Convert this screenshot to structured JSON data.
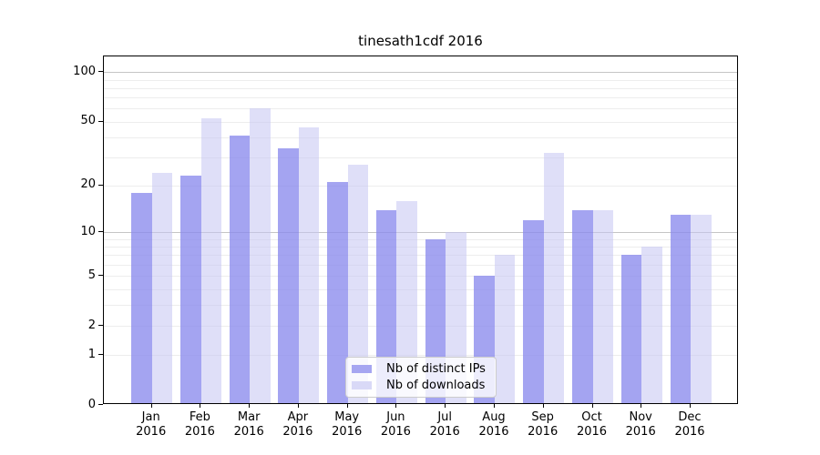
{
  "title": "tinesath1cdf 2016",
  "legend": {
    "items": [
      {
        "label": "Nb of distinct IPs",
        "color": "#a6a6f1"
      },
      {
        "label": "Nb of downloads",
        "color": "#d9d9f7"
      }
    ]
  },
  "chart_data": {
    "type": "bar",
    "title": "tinesath1cdf 2016",
    "x_months": [
      "Jan",
      "Feb",
      "Mar",
      "Apr",
      "May",
      "Jun",
      "Jul",
      "Aug",
      "Sep",
      "Oct",
      "Nov",
      "Dec"
    ],
    "x_year": "2016",
    "series": [
      {
        "name": "Nb of distinct IPs",
        "color": "rgba(138,138,237,0.78)",
        "swatch": "#a6a6f1",
        "values": [
          18,
          23,
          41,
          34,
          21,
          14,
          9,
          5,
          12,
          14,
          7,
          13
        ]
      },
      {
        "name": "Nb of downloads",
        "color": "rgba(197,197,243,0.55)",
        "swatch": "#d9d9f7",
        "values": [
          24,
          52,
          60,
          46,
          27,
          16,
          10,
          7,
          32,
          14,
          8,
          13
        ]
      }
    ],
    "y_scale": "log10(1+v)",
    "y_tick_labels": [
      0,
      1,
      2,
      5,
      10,
      20,
      50,
      100
    ],
    "grid_minor": [
      1,
      2,
      3,
      4,
      5,
      6,
      7,
      8,
      9,
      20,
      30,
      40,
      50,
      60,
      70,
      80,
      90
    ],
    "grid_major": [
      10,
      100
    ],
    "ylim": [
      0,
      125
    ],
    "xlabel": "",
    "ylabel": "",
    "legend_position": "lower-center"
  }
}
